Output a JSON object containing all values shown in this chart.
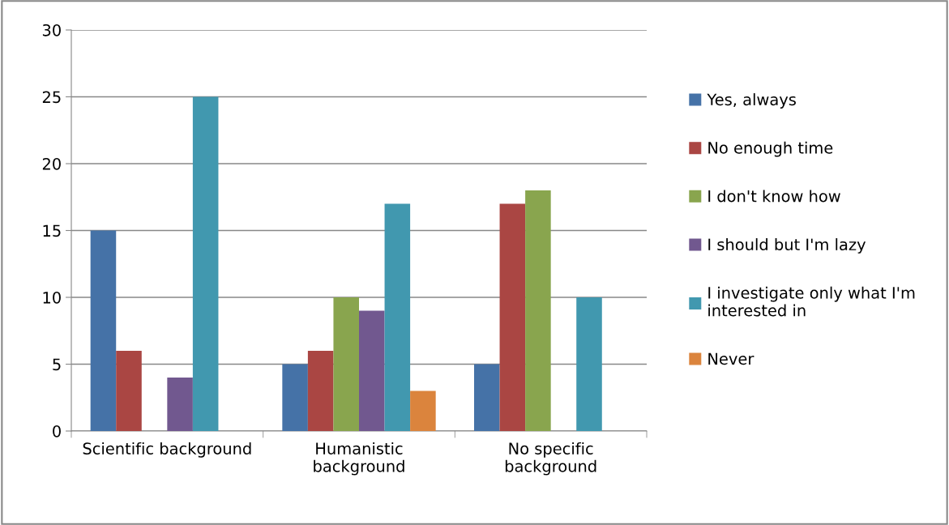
{
  "chart_data": {
    "type": "bar",
    "categories": [
      "Scientific background",
      "Humanistic\nbackground",
      "No specific\nbackground"
    ],
    "series": [
      {
        "name": "Yes, always",
        "color": "#4572a7",
        "values": [
          15,
          5,
          5
        ]
      },
      {
        "name": "No enough time",
        "color": "#aa4643",
        "values": [
          6,
          6,
          17
        ]
      },
      {
        "name": "I don't know how",
        "color": "#89a54e",
        "values": [
          null,
          10,
          18
        ]
      },
      {
        "name": "I should but I'm lazy",
        "color": "#71588f",
        "values": [
          4,
          9,
          null
        ]
      },
      {
        "name": "I investigate only what I'm\ninterested in",
        "color": "#4198af",
        "values": [
          25,
          17,
          10
        ]
      },
      {
        "name": "Never",
        "color": "#db843d",
        "values": [
          null,
          3,
          null
        ]
      }
    ],
    "ylim": [
      0,
      30
    ],
    "yticks": [
      0,
      5,
      10,
      15,
      20,
      25,
      30
    ],
    "grid": "y",
    "legend": "right"
  }
}
